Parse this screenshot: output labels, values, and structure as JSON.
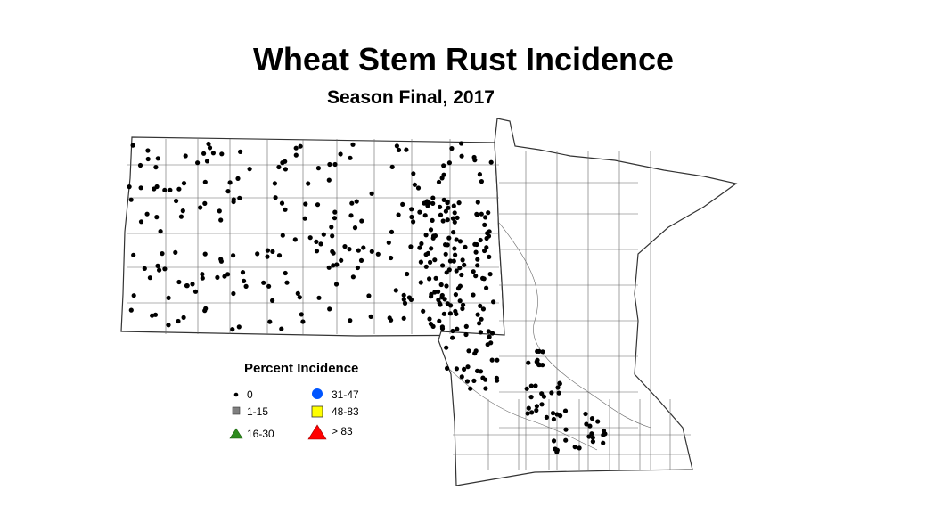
{
  "title": "Wheat Stem Rust Incidence",
  "subtitle": "Season Final, 2017",
  "legend": {
    "title": "Percent Incidence",
    "items": [
      {
        "label": "0",
        "symbol": "small-black-dot",
        "color": "#000000"
      },
      {
        "label": "1-15",
        "symbol": "gray-square",
        "color": "#808080"
      },
      {
        "label": "16-30",
        "symbol": "green-triangle",
        "color": "#2e8b1e"
      },
      {
        "label": "31-47",
        "symbol": "blue-circle",
        "color": "#0055ff"
      },
      {
        "label": "48-83",
        "symbol": "yellow-square",
        "color": "#ffff00"
      },
      {
        "label": "> 83",
        "symbol": "red-triangle",
        "color": "#ff0000"
      }
    ]
  },
  "colors": {
    "boundary": "#555555",
    "sample_dot": "#000000"
  }
}
